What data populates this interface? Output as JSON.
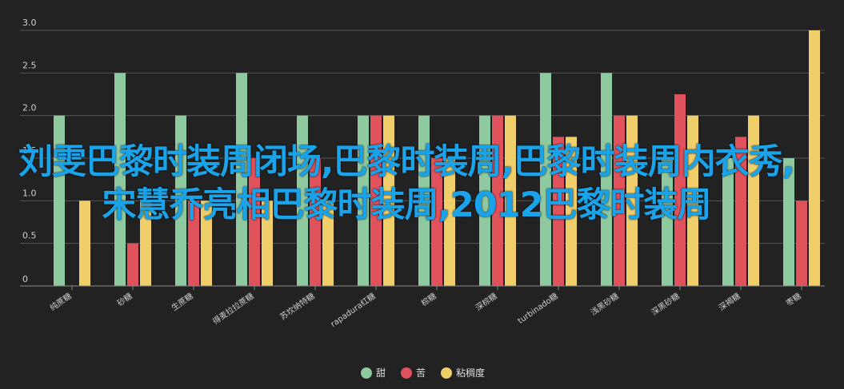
{
  "chart_data": {
    "type": "bar",
    "categories": [
      "纯蔗糖",
      "砂糖",
      "生蔗糖",
      "得麦拉拉蔗糖",
      "苏坎纳特糖",
      "rapadura红糖",
      "棕糖",
      "深棕糖",
      "turbinado糖",
      "浅黑砂糖",
      "深黑砂糖",
      "深褐糖",
      "枣糖"
    ],
    "series": [
      {
        "name": "甜",
        "color": "#8fc9a0",
        "values": [
          2.0,
          2.5,
          2.0,
          2.5,
          2.0,
          2.0,
          2.0,
          2.0,
          2.5,
          2.5,
          1.5,
          1.5,
          1.5
        ]
      },
      {
        "name": "苦",
        "color": "#e0525c",
        "values": [
          0,
          0.5,
          1.0,
          1.5,
          1.5,
          2.0,
          1.5,
          2.0,
          1.75,
          2.0,
          2.25,
          1.75,
          1.0
        ]
      },
      {
        "name": "粘稠度",
        "color": "#f0cf6a",
        "values": [
          1.0,
          1.0,
          1.0,
          1.0,
          1.0,
          2.0,
          1.5,
          2.0,
          1.75,
          2.0,
          2.0,
          2.0,
          3.0
        ]
      }
    ],
    "ylim": [
      0,
      3
    ],
    "yticks": [
      "0",
      "0.5",
      "1.0",
      "1.5",
      "2.0",
      "2.5",
      "3.0"
    ],
    "grid": true,
    "legend_position": "bottom"
  },
  "overlay_text": "刘雯巴黎时装周闭场,巴黎时装周,巴黎时装周内衣秀,宋慧乔亮相巴黎时装周,2012巴黎时装周"
}
